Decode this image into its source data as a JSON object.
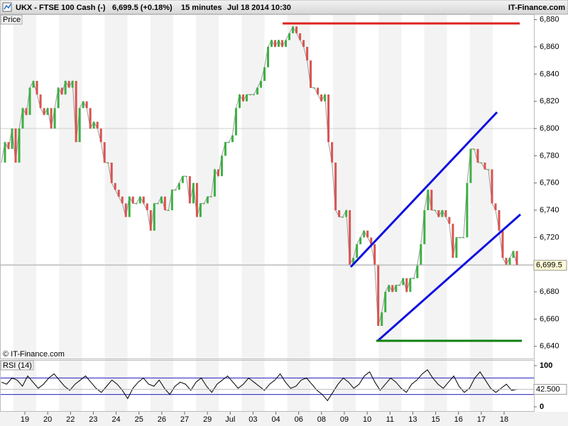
{
  "header": {
    "symbol": "UKX - FTSE 100 Cash (-)",
    "quote": "6,699.5 (+0.18%)",
    "interval": "15 minutes",
    "datetime": "Jul 18 2014 10:30",
    "site": "IT-Finance.com"
  },
  "date_axis": [
    "19",
    "20",
    "22",
    "23",
    "24",
    "25",
    "26",
    "27",
    "29",
    "Jul",
    "03",
    "04",
    "06",
    "08",
    "09",
    "10",
    "11",
    "13",
    "15",
    "16",
    "17",
    "18"
  ],
  "watermark": "© IT-Finance.com",
  "chart_data": [
    {
      "type": "line",
      "title": "Price",
      "up_color": "#3cb043",
      "down_color": "#d9534f",
      "line_color": "#999999",
      "ylim": [
        6631,
        6884
      ],
      "yticks": [
        {
          "value": 6640,
          "label": "6,640"
        },
        {
          "value": 6660,
          "label": "6,660"
        },
        {
          "value": 6680,
          "label": "6,680"
        },
        {
          "value": 6700,
          "label": "6,700"
        },
        {
          "value": 6720,
          "label": "6,720"
        },
        {
          "value": 6740,
          "label": "6,740"
        },
        {
          "value": 6760,
          "label": "6,760"
        },
        {
          "value": 6780,
          "label": "6,780"
        },
        {
          "value": 6800,
          "label": "6,800"
        },
        {
          "value": 6820,
          "label": "6,820"
        },
        {
          "value": 6840,
          "label": "6,840"
        },
        {
          "value": 6860,
          "label": "6,860"
        },
        {
          "value": 6880,
          "label": "6,880"
        }
      ],
      "gridlines": [
        6700,
        6800
      ],
      "last": {
        "value": 6699.5,
        "label": "6,699.5"
      },
      "series": [
        {
          "name": "UKX",
          "values": [
            6775,
            6790,
            6785,
            6800,
            6775,
            6800,
            6815,
            6810,
            6830,
            6835,
            6825,
            6815,
            6810,
            6815,
            6800,
            6815,
            6830,
            6825,
            6835,
            6830,
            6835,
            6790,
            6815,
            6820,
            6815,
            6800,
            6805,
            6800,
            6790,
            6775,
            6775,
            6760,
            6755,
            6750,
            6745,
            6735,
            6750,
            6745,
            6745,
            6750,
            6745,
            6740,
            6725,
            6745,
            6745,
            6750,
            6740,
            6740,
            6755,
            6755,
            6760,
            6765,
            6765,
            6745,
            6760,
            6735,
            6745,
            6745,
            6750,
            6750,
            6770,
            6765,
            6780,
            6790,
            6790,
            6795,
            6815,
            6825,
            6820,
            6825,
            6825,
            6825,
            6830,
            6835,
            6845,
            6860,
            6865,
            6860,
            6865,
            6860,
            6865,
            6870,
            6875,
            6870,
            6865,
            6860,
            6850,
            6830,
            6830,
            6825,
            6820,
            6825,
            6790,
            6775,
            6740,
            6735,
            6735,
            6740,
            6700,
            6705,
            6715,
            6720,
            6725,
            6720,
            6715,
            6700,
            6655,
            6665,
            6680,
            6685,
            6680,
            6685,
            6685,
            6690,
            6680,
            6690,
            6690,
            6700,
            6715,
            6740,
            6755,
            6740,
            6740,
            6735,
            6740,
            6735,
            6730,
            6705,
            6720,
            6720,
            6720,
            6760,
            6785,
            6785,
            6775,
            6775,
            6770,
            6770,
            6745,
            6740,
            6725,
            6705,
            6700,
            6705,
            6710,
            6699.5
          ]
        }
      ]
    },
    {
      "type": "line",
      "title": "RSI (14)",
      "color": "#000000",
      "band_color": "#1f1fbf",
      "ylim": [
        -12,
        112
      ],
      "yticks": [
        0,
        100
      ],
      "bands": [
        30,
        70
      ],
      "last": {
        "value": 42.5,
        "label": "42.500"
      },
      "series": [
        {
          "name": "RSI (14)",
          "values": [
            60,
            55,
            70,
            65,
            50,
            75,
            60,
            45,
            55,
            70,
            80,
            65,
            50,
            40,
            55,
            65,
            75,
            60,
            45,
            35,
            50,
            65,
            55,
            40,
            20,
            45,
            60,
            70,
            55,
            50,
            65,
            45,
            30,
            50,
            60,
            55,
            40,
            60,
            70,
            50,
            35,
            55,
            65,
            75,
            60,
            45,
            55,
            70,
            60,
            50,
            40,
            55,
            65,
            80,
            60,
            45,
            50,
            65,
            70,
            55,
            40,
            30,
            15,
            35,
            55,
            70,
            60,
            45,
            55,
            75,
            85,
            60,
            40,
            55,
            70,
            60,
            45,
            35,
            55,
            65,
            80,
            90,
            70,
            55,
            45,
            60,
            75,
            50,
            35,
            45,
            70,
            85,
            65,
            45,
            35,
            45,
            55,
            40,
            42.5
          ]
        }
      ]
    }
  ]
}
